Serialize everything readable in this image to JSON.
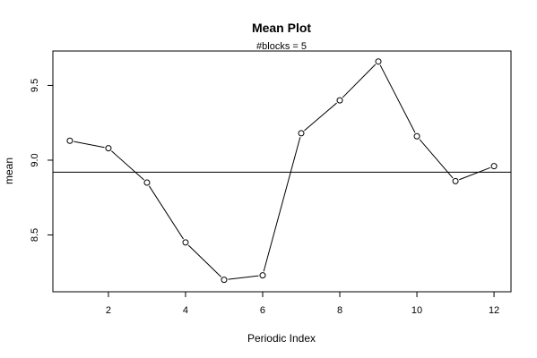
{
  "chart_data": {
    "type": "line",
    "title": "Mean Plot",
    "subtitle": "#blocks =  5",
    "xlabel": "Periodic Index",
    "ylabel": "mean",
    "x": [
      1,
      2,
      3,
      4,
      5,
      6,
      7,
      8,
      9,
      10,
      11,
      12
    ],
    "series": [
      {
        "values": [
          9.13,
          9.08,
          8.85,
          8.45,
          8.2,
          8.23,
          9.18,
          9.4,
          9.66,
          9.16,
          8.86,
          8.96
        ]
      }
    ],
    "reference_line": 8.92,
    "xlim": [
      0.56,
      12.44
    ],
    "ylim": [
      8.12,
      9.73
    ],
    "xticks": [
      2,
      4,
      6,
      8,
      10,
      12
    ],
    "xtick_labels": [
      "2",
      "4",
      "6",
      "8",
      "10",
      "12"
    ],
    "yticks": [
      8.5,
      9.0,
      9.5
    ],
    "ytick_labels": [
      "8.5",
      "9.0",
      "9.5"
    ],
    "grid": false,
    "marker": "open-circle",
    "line_color": "#000000",
    "background": "#ffffff"
  }
}
